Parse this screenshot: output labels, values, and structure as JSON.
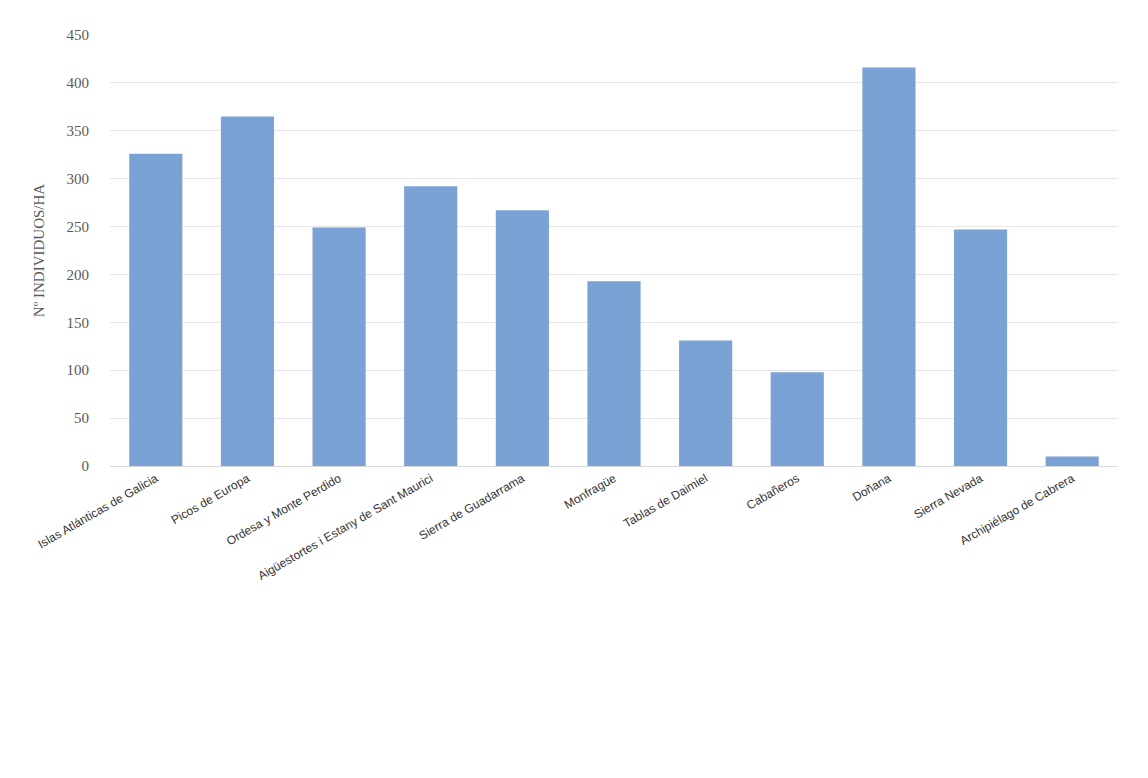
{
  "chart_data": {
    "type": "bar",
    "y_label": "Nº INDIVIDUOS/HA",
    "categories": [
      "Islas Atlánticas de Galicia",
      "Picos de Europa",
      "Ordesa y Monte Perdido",
      "Aigüestortes i Estany de Sant Maurici",
      "Sierra de Guadarrama",
      "Monfragüe",
      "Tablas de Daimiel",
      "Cabañeros",
      "Doñana",
      "Sierra Nevada",
      "Archipiélago de Cabrera"
    ],
    "values": [
      326,
      365,
      249,
      292,
      267,
      193,
      131,
      98,
      416,
      247,
      10
    ],
    "color": "#7ba2d4",
    "ylim": [
      0,
      450
    ],
    "yticks": [
      0,
      50,
      100,
      150,
      200,
      250,
      300,
      350,
      400,
      450
    ],
    "grid": true
  }
}
